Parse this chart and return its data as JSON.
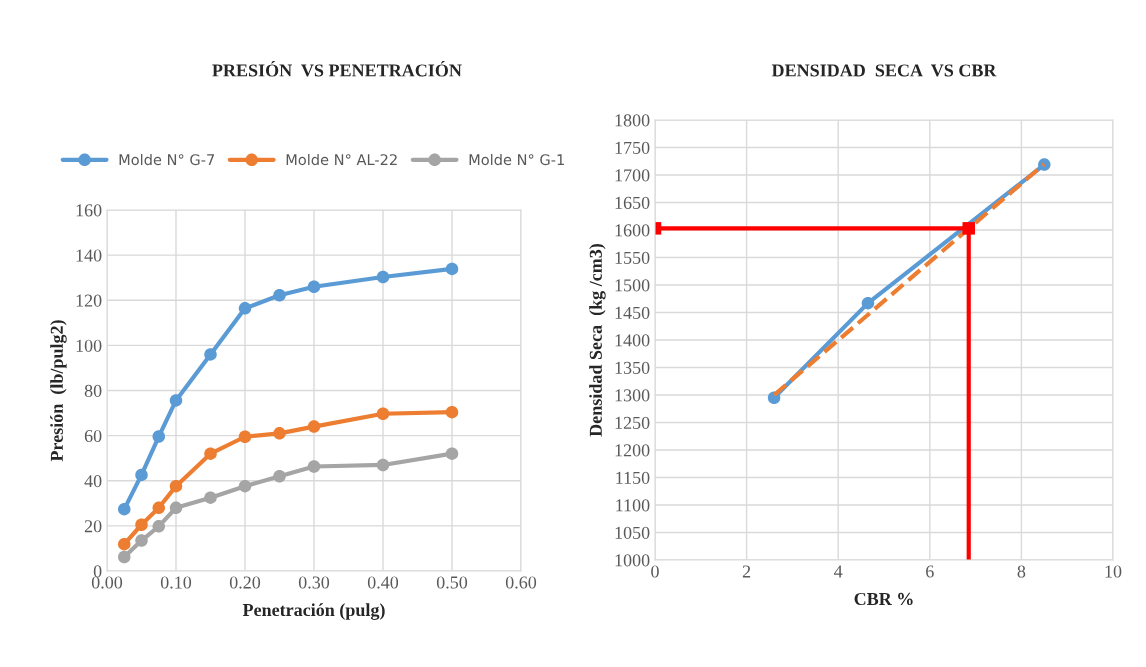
{
  "chart_data": [
    {
      "type": "line",
      "title": "PRESIÓN  VS PENETRACIÓN",
      "xlabel": "Penetración (pulg)",
      "ylabel": "Presión  (lb/pulg2)",
      "x": [
        0.025,
        0.05,
        0.075,
        0.1,
        0.15,
        0.2,
        0.25,
        0.3,
        0.4,
        0.5
      ],
      "series": [
        {
          "name": "Molde N° G-7",
          "color": "#5b9bd5",
          "values": [
            27.4,
            42.6,
            59.6,
            75.6,
            96,
            116.4,
            122.2,
            126,
            130.3,
            133.9
          ]
        },
        {
          "name": "Molde N° AL-22",
          "color": "#ed7d31",
          "values": [
            11.9,
            20.5,
            28,
            37.6,
            52,
            59.5,
            61,
            64,
            69.7,
            70.4
          ]
        },
        {
          "name": "Molde N° G-1",
          "color": "#a5a5a5",
          "values": [
            6.2,
            13.5,
            19.8,
            28,
            32.5,
            37.6,
            42,
            46.3,
            47,
            52
          ]
        }
      ],
      "xlim": [
        0,
        0.6
      ],
      "xticks": [
        {
          "value": 0,
          "label": "0.00"
        },
        {
          "value": 0.1,
          "label": "0.10"
        },
        {
          "value": 0.2,
          "label": "0.20"
        },
        {
          "value": 0.3,
          "label": "0.30"
        },
        {
          "value": 0.4,
          "label": "0.40"
        },
        {
          "value": 0.5,
          "label": "0.50"
        },
        {
          "value": 0.6,
          "label": "0.60"
        }
      ],
      "ylim": [
        0,
        160
      ],
      "yticks": [
        0,
        20,
        40,
        60,
        80,
        100,
        120,
        140,
        160
      ],
      "grid": true,
      "legend": "top",
      "marker": "circle",
      "line_style": "solid"
    },
    {
      "type": "line",
      "title": "DENSIDAD  SECA  VS CBR",
      "xlabel": "CBR %",
      "ylabel": "Densidad Seca  (kg /cm3)",
      "series": [
        {
          "color": "#5b9bd5",
          "x": [
            2.6,
            4.65,
            8.5
          ],
          "values": [
            1295,
            1467,
            1719
          ],
          "marker": "circle",
          "line_style": "solid"
        },
        {
          "color": "#ed7d31",
          "x": [
            2.6,
            8.5
          ],
          "values": [
            1300,
            1720
          ],
          "marker": "none",
          "line_style": "dashed"
        },
        {
          "color": "#ff0000",
          "x": [
            0,
            6.85
          ],
          "values": [
            1603,
            1603
          ],
          "marker": "square",
          "line_style": "solid"
        },
        {
          "color": "#ff0000",
          "x": [
            6.85,
            6.85
          ],
          "values": [
            1603,
            1000
          ],
          "marker": "none",
          "line_style": "solid"
        }
      ],
      "xlim": [
        0,
        10
      ],
      "xticks": [
        0,
        2,
        4,
        6,
        8,
        10
      ],
      "ylim": [
        1000,
        1800
      ],
      "yticks": [
        1000,
        1050,
        1100,
        1150,
        1200,
        1250,
        1300,
        1350,
        1400,
        1450,
        1500,
        1550,
        1600,
        1650,
        1700,
        1750,
        1800
      ],
      "grid": true
    }
  ]
}
